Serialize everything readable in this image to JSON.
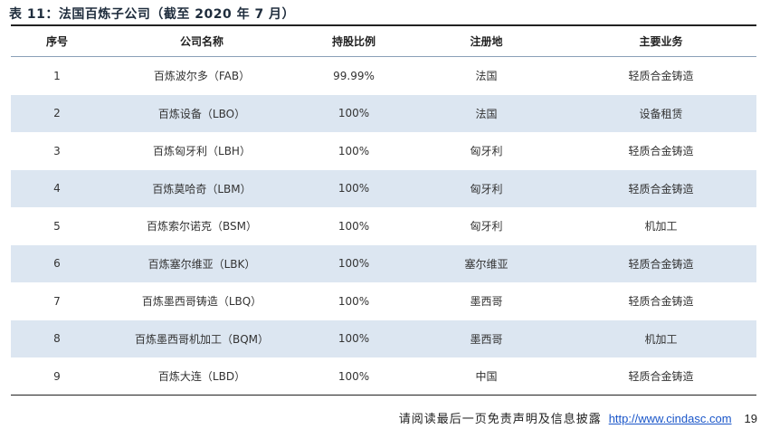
{
  "title": "表 11：法国百炼子公司（截至 2020 年 7 月）",
  "table": {
    "headers": [
      "序号",
      "公司名称",
      "持股比例",
      "注册地",
      "主要业务"
    ],
    "rows": [
      [
        "1",
        "百炼波尔多（FAB）",
        "99.99%",
        "法国",
        "轻质合金铸造"
      ],
      [
        "2",
        "百炼设备（LBO）",
        "100%",
        "法国",
        "设备租赁"
      ],
      [
        "3",
        "百炼匈牙利（LBH）",
        "100%",
        "匈牙利",
        "轻质合金铸造"
      ],
      [
        "4",
        "百炼莫哈奇（LBM）",
        "100%",
        "匈牙利",
        "轻质合金铸造"
      ],
      [
        "5",
        "百炼索尔诺克（BSM）",
        "100%",
        "匈牙利",
        "机加工"
      ],
      [
        "6",
        "百炼塞尔维亚（LBK）",
        "100%",
        "塞尔维亚",
        "轻质合金铸造"
      ],
      [
        "7",
        "百炼墨西哥铸造（LBQ）",
        "100%",
        "墨西哥",
        "轻质合金铸造"
      ],
      [
        "8",
        "百炼墨西哥机加工（BQM）",
        "100%",
        "墨西哥",
        "机加工"
      ],
      [
        "9",
        "百炼大连（LBD）",
        "100%",
        "中国",
        "轻质合金铸造"
      ]
    ]
  },
  "footer": {
    "disclaimer": "请阅读最后一页免责声明及信息披露",
    "link": "http://www.cindasc.com",
    "page": "19"
  }
}
